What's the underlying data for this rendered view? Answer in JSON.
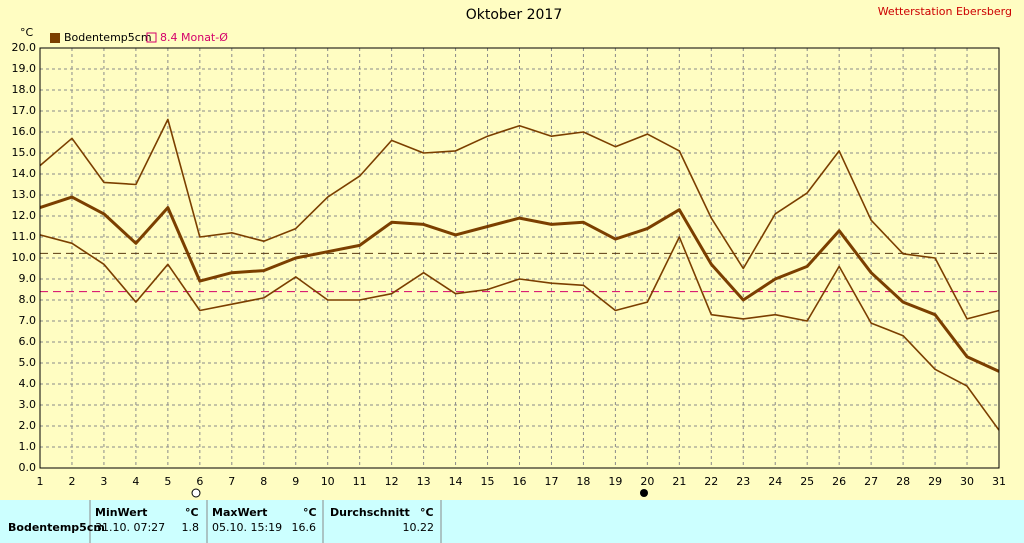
{
  "chart_data": {
    "type": "line",
    "title": "Oktober 2017",
    "station": "Wetterstation Ebersberg",
    "y_unit": "°C",
    "x": [
      1,
      2,
      3,
      4,
      5,
      6,
      7,
      8,
      9,
      10,
      11,
      12,
      13,
      14,
      15,
      16,
      17,
      18,
      19,
      20,
      21,
      22,
      23,
      24,
      25,
      26,
      27,
      28,
      29,
      30,
      31
    ],
    "xlim": [
      1,
      31
    ],
    "xticks": [
      1,
      2,
      3,
      4,
      5,
      6,
      7,
      8,
      9,
      10,
      11,
      12,
      13,
      14,
      15,
      16,
      17,
      18,
      19,
      20,
      21,
      22,
      23,
      24,
      25,
      26,
      27,
      28,
      29,
      30,
      31
    ],
    "ylim": [
      0,
      20
    ],
    "yticks": [
      {
        "value": 0,
        "label": "0.0"
      },
      {
        "value": 1,
        "label": "1.0"
      },
      {
        "value": 2,
        "label": "2.0"
      },
      {
        "value": 3,
        "label": "3.0"
      },
      {
        "value": 4,
        "label": "4.0"
      },
      {
        "value": 5,
        "label": "5.0"
      },
      {
        "value": 6,
        "label": "6.0"
      },
      {
        "value": 7,
        "label": "7.0"
      },
      {
        "value": 8,
        "label": "8.0"
      },
      {
        "value": 9,
        "label": "9.0"
      },
      {
        "value": 10,
        "label": "10.0"
      },
      {
        "value": 11,
        "label": "11.0"
      },
      {
        "value": 12,
        "label": "12.0"
      },
      {
        "value": 13,
        "label": "13.0"
      },
      {
        "value": 14,
        "label": "14.0"
      },
      {
        "value": 15,
        "label": "15.0"
      },
      {
        "value": 16,
        "label": "16.0"
      },
      {
        "value": 17,
        "label": "17.0"
      },
      {
        "value": 18,
        "label": "18.0"
      },
      {
        "value": 19,
        "label": "19.0"
      },
      {
        "value": 20,
        "label": "20.0"
      }
    ],
    "grid": true,
    "series": [
      {
        "name": "Bodentemp5cm",
        "color": "#7b3f00",
        "values": [
          12.4,
          12.9,
          12.1,
          10.7,
          12.4,
          8.9,
          9.3,
          9.4,
          10.0,
          10.3,
          10.6,
          11.7,
          11.6,
          11.1,
          11.5,
          11.9,
          11.6,
          11.7,
          10.9,
          11.4,
          12.3,
          9.7,
          8.0,
          9.0,
          9.6,
          11.3,
          9.3,
          7.9,
          7.3,
          5.3,
          4.6
        ]
      },
      {
        "color": "#7b3f00",
        "values": [
          14.4,
          15.7,
          13.6,
          13.5,
          16.6,
          11.0,
          11.2,
          10.8,
          11.4,
          12.9,
          13.9,
          15.6,
          15.0,
          15.1,
          15.8,
          16.3,
          15.8,
          16.0,
          15.3,
          15.9,
          15.1,
          11.9,
          9.5,
          12.1,
          13.1,
          15.1,
          11.8,
          10.2,
          10.0,
          7.1,
          7.5
        ]
      },
      {
        "color": "#7b3f00",
        "values": [
          11.1,
          10.7,
          9.7,
          7.9,
          9.7,
          7.5,
          7.8,
          8.1,
          9.1,
          8.0,
          8.0,
          8.3,
          9.3,
          8.3,
          8.5,
          9.0,
          8.8,
          8.7,
          7.5,
          7.9,
          11.0,
          7.3,
          7.1,
          7.3,
          7.0,
          9.6,
          6.9,
          6.3,
          4.7,
          3.9,
          1.8
        ]
      }
    ],
    "reference": {
      "value": 8.4,
      "label": "Monat-Ø",
      "color": "#d4006a"
    }
  },
  "table": {
    "headers": [
      "MinWert",
      "°C",
      "MaxWert",
      "°C",
      "Durchschnitt",
      "°C"
    ],
    "rows": [
      {
        "name": "Bodentemp5cm",
        "min_time": "31.10. 07:27",
        "min": 1.8,
        "max_time": "05.10. 15:19",
        "max": 16.6,
        "average": 10.22
      }
    ]
  }
}
